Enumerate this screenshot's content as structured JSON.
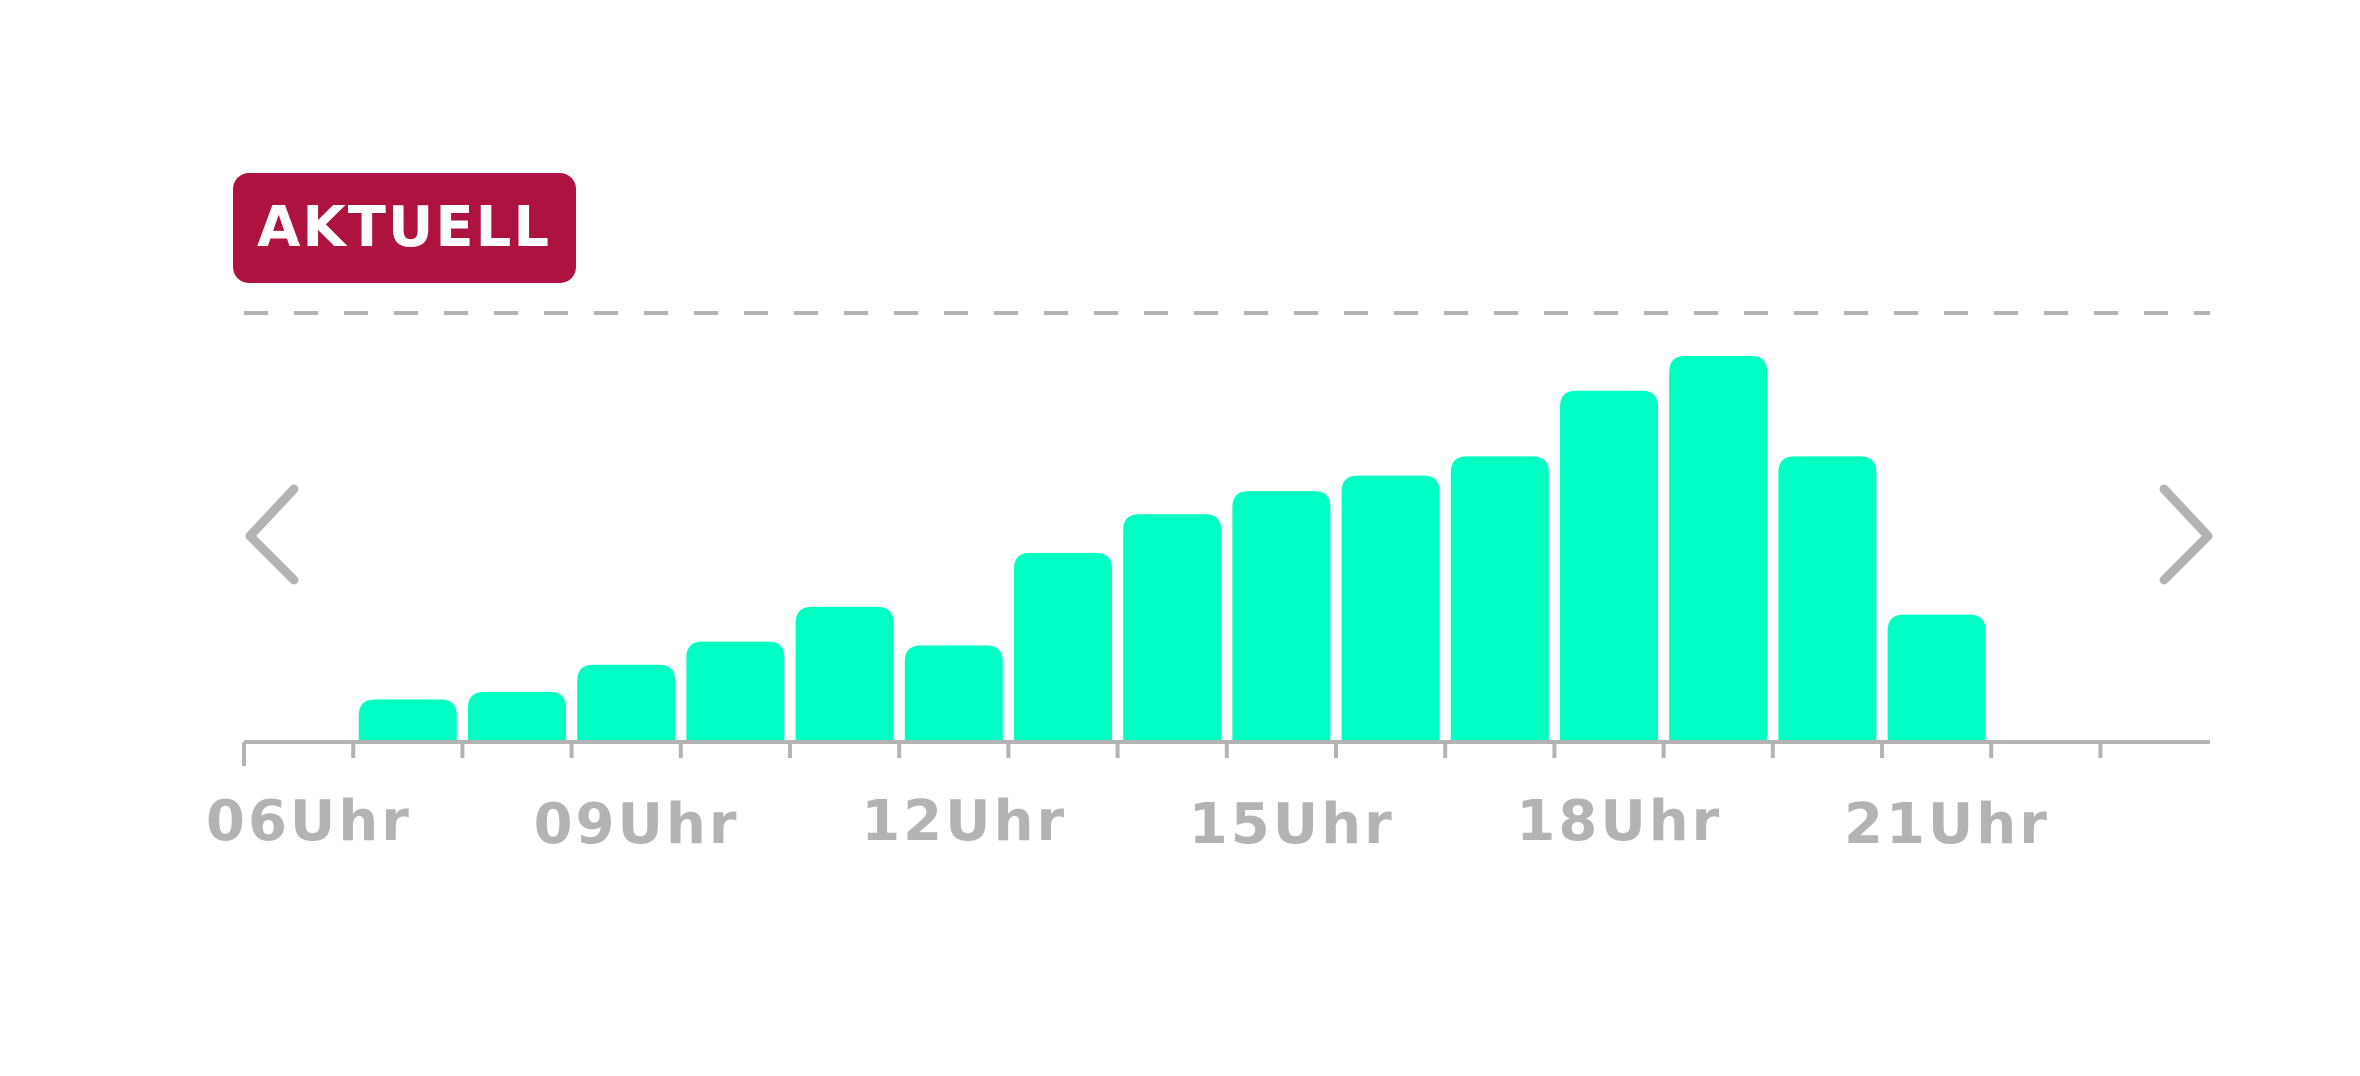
{
  "badge": {
    "label": "AKTUELL",
    "color": "#AD1240",
    "text_color": "#FFFFFF"
  },
  "nav": {
    "prev_icon": "chevron-left-icon",
    "next_icon": "chevron-right-icon",
    "color": "#B3B3B3"
  },
  "chart_data": {
    "type": "bar",
    "title": "",
    "xlabel": "",
    "ylabel": "",
    "bar_color": "#00FFC2",
    "axis_color": "#B3B3B3",
    "current_marker": "dashed line",
    "x_ticks": [
      "06Uhr",
      "09Uhr",
      "12Uhr",
      "15Uhr",
      "18Uhr",
      "21Uhr"
    ],
    "x_range": [
      6,
      24
    ],
    "ylim": [
      0,
      100
    ],
    "bars": [
      {
        "hour": 7,
        "value": 11
      },
      {
        "hour": 8,
        "value": 13
      },
      {
        "hour": 9,
        "value": 20
      },
      {
        "hour": 10,
        "value": 26
      },
      {
        "hour": 11,
        "value": 35
      },
      {
        "hour": 12,
        "value": 25
      },
      {
        "hour": 13,
        "value": 49
      },
      {
        "hour": 14,
        "value": 59
      },
      {
        "hour": 15,
        "value": 65
      },
      {
        "hour": 16,
        "value": 69
      },
      {
        "hour": 17,
        "value": 74
      },
      {
        "hour": 18,
        "value": 91
      },
      {
        "hour": 19,
        "value": 100
      },
      {
        "hour": 20,
        "value": 74
      },
      {
        "hour": 21,
        "value": 33
      }
    ]
  }
}
